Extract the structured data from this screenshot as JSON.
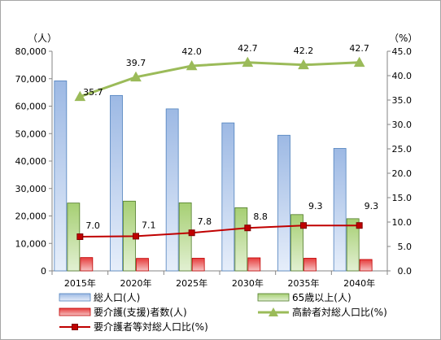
{
  "chart_data": {
    "type": "bar",
    "categories": [
      "2015年",
      "2020年",
      "2025年",
      "2030年",
      "2035年",
      "2040年"
    ],
    "left_axis": {
      "unit": "（人）",
      "ylim": [
        0,
        80000
      ],
      "ticks": [
        "0",
        "10,000",
        "20,000",
        "30,000",
        "40,000",
        "50,000",
        "60,000",
        "70,000",
        "80,000"
      ]
    },
    "right_axis": {
      "unit": "（%）",
      "ylim": [
        0,
        45
      ],
      "ticks": [
        "0.0",
        "5.0",
        "10.0",
        "15.0",
        "20.0",
        "25.0",
        "30.0",
        "35.0",
        "40.0",
        "45.0"
      ]
    },
    "series": [
      {
        "name": "総人口(人)",
        "type": "bar",
        "axis": "left",
        "color": "#4f81bd",
        "values": [
          69200,
          63900,
          59000,
          53900,
          49400,
          44600
        ]
      },
      {
        "name": "65歳以上(人)",
        "type": "bar",
        "axis": "left",
        "color": "#9bbb59",
        "values": [
          24700,
          25400,
          24800,
          23000,
          20500,
          19000
        ]
      },
      {
        "name": "要介護(支援)者数(人)",
        "type": "bar",
        "axis": "left",
        "color": "#c0504d",
        "values": [
          4850,
          4550,
          4600,
          4750,
          4600,
          4150
        ]
      },
      {
        "name": "高齢者対総人口比(%)",
        "type": "line",
        "axis": "right",
        "color": "#9bbb59",
        "marker": "triangle",
        "values": [
          35.7,
          39.7,
          42.0,
          42.7,
          42.2,
          42.7
        ],
        "labels": [
          "35.7",
          "39.7",
          "42.0",
          "42.7",
          "42.2",
          "42.7"
        ]
      },
      {
        "name": "要介護者等対総人口比(%)",
        "type": "line",
        "axis": "right",
        "color": "#c00000",
        "marker": "square",
        "values": [
          7.0,
          7.1,
          7.8,
          8.8,
          9.3,
          9.3
        ],
        "labels": [
          "7.0",
          "7.1",
          "7.8",
          "8.8",
          "9.3",
          "9.3"
        ]
      }
    ],
    "grid": false,
    "legend_position": "bottom"
  }
}
